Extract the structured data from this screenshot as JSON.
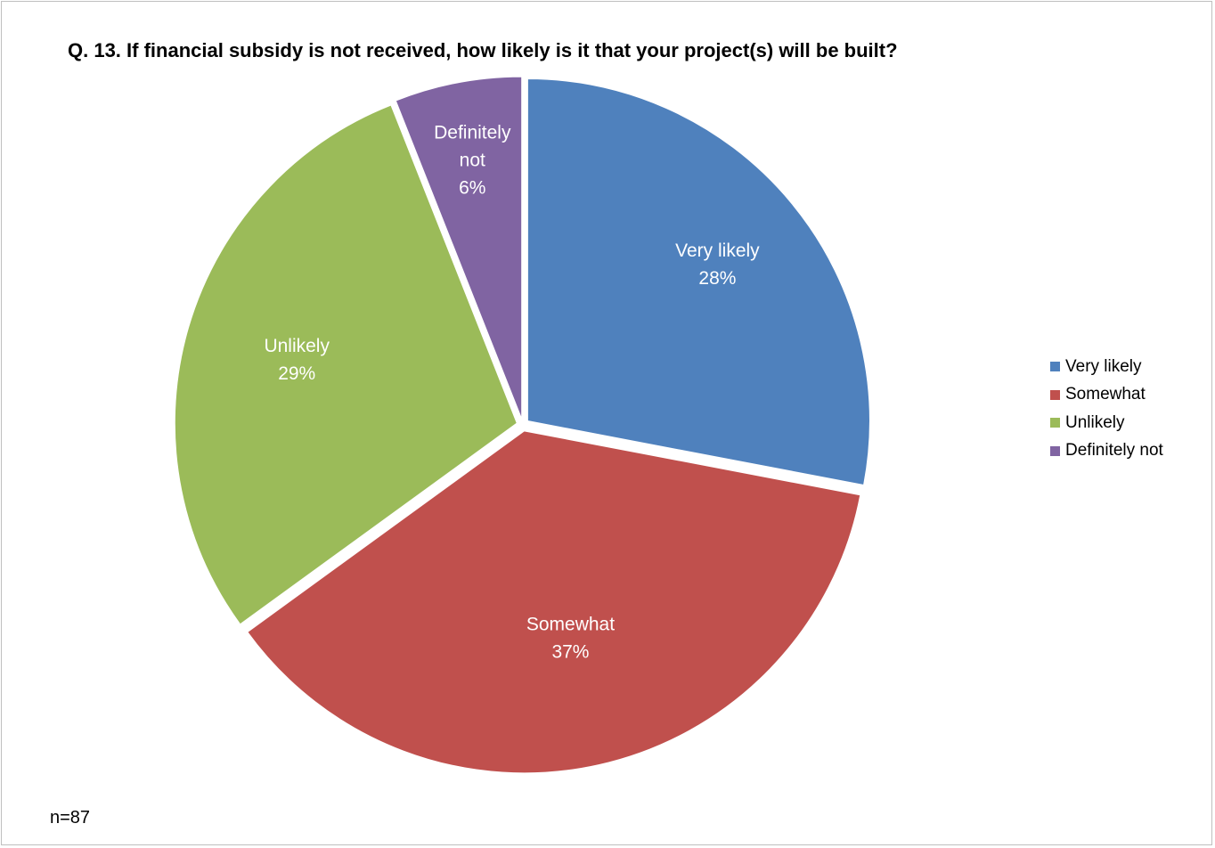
{
  "chart_data": {
    "type": "pie",
    "title": "Q. 13.  If financial subsidy is not received, how likely is it that your project(s) will be built?",
    "slices": [
      {
        "label": "Very likely",
        "value": 28,
        "display": "28%",
        "color": "#4F81BD"
      },
      {
        "label": "Somewhat",
        "value": 37,
        "display": "37%",
        "color": "#C0504D"
      },
      {
        "label": "Unlikely",
        "value": 29,
        "display": "29%",
        "color": "#9BBB59"
      },
      {
        "label": "Definitely not",
        "value": 6,
        "display": "6%",
        "color": "#8064A2"
      }
    ],
    "legend_position": "right",
    "note": "n=87"
  }
}
